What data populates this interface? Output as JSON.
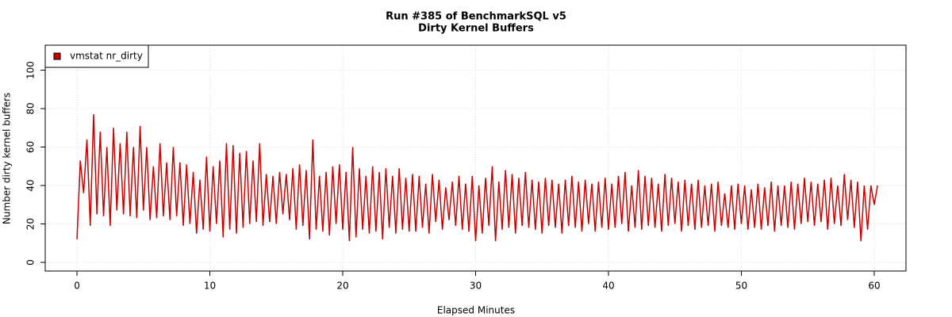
{
  "chart_data": {
    "type": "line",
    "title": "Run #385 of BenchmarkSQL v5",
    "subtitle": "Dirty Kernel Buffers",
    "x_label": "Elapsed Minutes",
    "y_label": "Number dirty kernel buffers",
    "xlim": [
      -2.39,
      62.39
    ],
    "ylim": [
      -4.5,
      113
    ],
    "xticks": [
      0,
      10,
      20,
      30,
      40,
      50,
      60
    ],
    "yticks": [
      0,
      20,
      40,
      60,
      80,
      100
    ],
    "grid": true,
    "legend": "top-left",
    "x": [
      0,
      0.25,
      0.5,
      0.75,
      1,
      1.25,
      1.5,
      1.75,
      2,
      2.25,
      2.5,
      2.75,
      3,
      3.25,
      3.5,
      3.75,
      4,
      4.25,
      4.5,
      4.75,
      5,
      5.25,
      5.5,
      5.75,
      6,
      6.25,
      6.5,
      6.75,
      7,
      7.25,
      7.5,
      7.75,
      8,
      8.25,
      8.5,
      8.75,
      9,
      9.25,
      9.5,
      9.75,
      10,
      10.25,
      10.5,
      10.75,
      11,
      11.25,
      11.5,
      11.75,
      12,
      12.25,
      12.5,
      12.75,
      13,
      13.25,
      13.5,
      13.75,
      14,
      14.25,
      14.5,
      14.75,
      15,
      15.25,
      15.5,
      15.75,
      16,
      16.25,
      16.5,
      16.75,
      17,
      17.25,
      17.5,
      17.75,
      18,
      18.25,
      18.5,
      18.75,
      19,
      19.25,
      19.5,
      19.75,
      20,
      20.25,
      20.5,
      20.75,
      21,
      21.25,
      21.5,
      21.75,
      22,
      22.25,
      22.5,
      22.75,
      23,
      23.25,
      23.5,
      23.75,
      24,
      24.25,
      24.5,
      24.75,
      25,
      25.25,
      25.5,
      25.75,
      26,
      26.25,
      26.5,
      26.75,
      27,
      27.25,
      27.5,
      27.75,
      28,
      28.25,
      28.5,
      28.75,
      29,
      29.25,
      29.5,
      29.75,
      30,
      30.25,
      30.5,
      30.75,
      31,
      31.25,
      31.5,
      31.75,
      32,
      32.25,
      32.5,
      32.75,
      33,
      33.25,
      33.5,
      33.75,
      34,
      34.25,
      34.5,
      34.75,
      35,
      35.25,
      35.5,
      35.75,
      36,
      36.25,
      36.5,
      36.75,
      37,
      37.25,
      37.5,
      37.75,
      38,
      38.25,
      38.5,
      38.75,
      39,
      39.25,
      39.5,
      39.75,
      40,
      40.25,
      40.5,
      40.75,
      41,
      41.25,
      41.5,
      41.75,
      42,
      42.25,
      42.5,
      42.75,
      43,
      43.25,
      43.5,
      43.75,
      44,
      44.25,
      44.5,
      44.75,
      45,
      45.25,
      45.5,
      45.75,
      46,
      46.25,
      46.5,
      46.75,
      47,
      47.25,
      47.5,
      47.75,
      48,
      48.25,
      48.5,
      48.75,
      49,
      49.25,
      49.5,
      49.75,
      50,
      50.25,
      50.5,
      50.75,
      51,
      51.25,
      51.5,
      51.75,
      52,
      52.25,
      52.5,
      52.75,
      53,
      53.25,
      53.5,
      53.75,
      54,
      54.25,
      54.5,
      54.75,
      55,
      55.25,
      55.5,
      55.75,
      56,
      56.25,
      56.5,
      56.75,
      57,
      57.25,
      57.5,
      57.75,
      58,
      58.25,
      58.5,
      58.75,
      59,
      59.25,
      59.5,
      59.75,
      60,
      60.25
    ],
    "series": [
      {
        "name": "vmstat nr_dirty",
        "color": "#cc0000",
        "values": [
          12,
          53,
          36,
          64,
          19,
          77,
          25,
          68,
          24,
          60,
          19,
          70,
          27,
          62,
          25,
          68,
          24,
          60,
          23,
          71,
          27,
          60,
          22,
          50,
          23,
          62,
          24,
          52,
          22,
          60,
          24,
          52,
          19,
          51,
          20,
          47,
          15,
          43,
          17,
          55,
          16,
          50,
          20,
          53,
          13,
          62,
          17,
          61,
          15,
          57,
          18,
          58,
          20,
          53,
          21,
          62,
          19,
          46,
          21,
          45,
          20,
          47,
          25,
          46,
          22,
          49,
          17,
          51,
          19,
          48,
          12,
          64,
          17,
          45,
          16,
          47,
          14,
          50,
          20,
          51,
          17,
          47,
          11,
          60,
          13,
          49,
          17,
          45,
          15,
          50,
          16,
          47,
          12,
          49,
          18,
          45,
          15,
          49,
          17,
          44,
          16,
          46,
          16,
          45,
          18,
          41,
          15,
          46,
          21,
          43,
          17,
          39,
          22,
          42,
          19,
          45,
          17,
          41,
          16,
          45,
          11,
          40,
          15,
          44,
          19,
          50,
          11,
          42,
          17,
          48,
          18,
          46,
          15,
          44,
          19,
          47,
          18,
          43,
          17,
          42,
          15,
          44,
          19,
          43,
          18,
          41,
          15,
          43,
          19,
          45,
          18,
          42,
          16,
          43,
          20,
          41,
          16,
          42,
          18,
          44,
          17,
          41,
          18,
          45,
          20,
          47,
          16,
          40,
          18,
          48,
          17,
          45,
          19,
          44,
          18,
          41,
          16,
          46,
          19,
          44,
          20,
          42,
          16,
          43,
          19,
          41,
          17,
          43,
          18,
          40,
          19,
          41,
          16,
          42,
          19,
          36,
          18,
          40,
          17,
          41,
          20,
          40,
          17,
          38,
          18,
          41,
          17,
          39,
          19,
          42,
          16,
          40,
          19,
          40,
          18,
          42,
          17,
          41,
          20,
          44,
          21,
          42,
          19,
          41,
          21,
          43,
          17,
          44,
          20,
          40,
          19,
          46,
          22,
          43,
          18,
          42,
          11,
          40,
          17,
          40,
          30,
          40
        ]
      }
    ]
  }
}
